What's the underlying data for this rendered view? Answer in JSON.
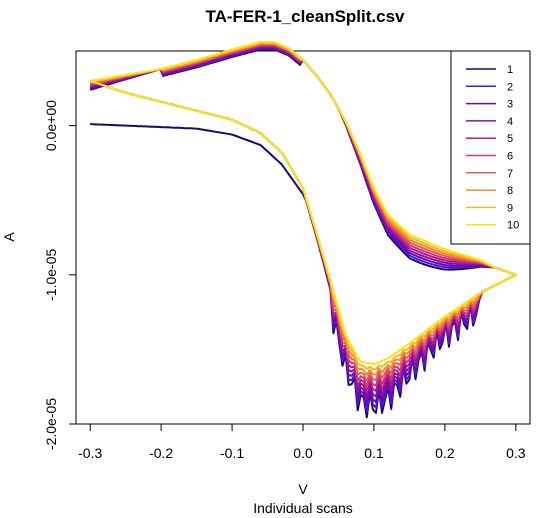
{
  "chart_data": {
    "type": "line",
    "title": "TA-FER-1_cleanSplit.csv",
    "xlabel": "V",
    "ylabel": "A",
    "subtitle": "Individual scans",
    "xlim": [
      -0.32,
      0.32
    ],
    "ylim": [
      -2e-05,
      5e-06
    ],
    "x_ticks": [
      -0.3,
      -0.2,
      -0.1,
      0.0,
      0.1,
      0.2,
      0.3
    ],
    "x_tick_labels": [
      "-0.3",
      "-0.2",
      "-0.1",
      "0.0",
      "0.1",
      "0.2",
      "0.3"
    ],
    "y_ticks": [
      0.0,
      -1e-05,
      -2e-05
    ],
    "y_tick_labels": [
      "0.0e+00",
      "-1.0e-05",
      "-2.0e-05"
    ],
    "grid": false,
    "legend_position": "top-right",
    "series": [
      {
        "name": "1",
        "color": "#1a0873"
      },
      {
        "name": "2",
        "color": "#4a18d8"
      },
      {
        "name": "3",
        "color": "#6a0ab0"
      },
      {
        "name": "4",
        "color": "#8c0ea0"
      },
      {
        "name": "5",
        "color": "#b01a94"
      },
      {
        "name": "6",
        "color": "#cf3a73"
      },
      {
        "name": "7",
        "color": "#e55c5c"
      },
      {
        "name": "8",
        "color": "#f3892f"
      },
      {
        "name": "9",
        "color": "#f6ba18"
      },
      {
        "name": "10",
        "color": "#f8e41c"
      }
    ],
    "curve": {
      "forward": {
        "x": [
          -0.3,
          -0.25,
          -0.2,
          -0.15,
          -0.1,
          -0.06,
          -0.03,
          0.0,
          0.02,
          0.04,
          0.06,
          0.08,
          0.1,
          0.12,
          0.15,
          0.2,
          0.25,
          0.3
        ],
        "y": [
          3e-06,
          2.2e-06,
          1.6e-06,
          1e-06,
          4e-07,
          -5e-07,
          -1.8e-06,
          -4.2e-06,
          -7.3e-06,
          -1.06e-05,
          -1.4e-05,
          -1.58e-05,
          -1.6e-05,
          -1.56e-05,
          -1.46e-05,
          -1.28e-05,
          -1.12e-05,
          -1e-05
        ]
      },
      "reverse": {
        "x": [
          0.3,
          0.27,
          0.25,
          0.2,
          0.15,
          0.12,
          0.1,
          0.08,
          0.06,
          0.04,
          0.02,
          0.0,
          -0.02,
          -0.04,
          -0.06,
          -0.1,
          -0.15,
          -0.2,
          -0.25,
          -0.3
        ],
        "y": [
          -1e-05,
          -9.5e-06,
          -9e-06,
          -8.3e-06,
          -7.3e-06,
          -6e-06,
          -4.2e-06,
          -1.8e-06,
          3e-07,
          2e-06,
          3.3e-06,
          4.4e-06,
          5.2e-06,
          5.6e-06,
          5.6e-06,
          5.1e-06,
          4.4e-06,
          3.8e-06,
          3.4e-06,
          3e-06
        ]
      },
      "first_scan_start": {
        "x": [
          -0.3,
          -0.25,
          -0.2,
          -0.15,
          -0.1,
          -0.06,
          -0.03,
          0.0
        ],
        "y": [
          1e-07,
          0.0,
          -1e-07,
          -2e-07,
          -6e-07,
          -1.3e-06,
          -2.6e-06,
          -4.6e-06
        ]
      }
    }
  }
}
